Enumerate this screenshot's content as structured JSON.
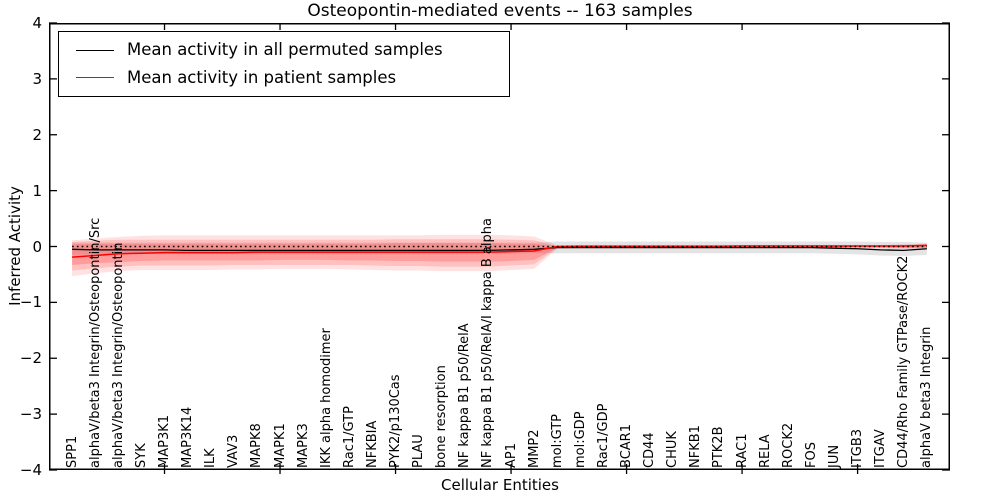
{
  "chart_data": {
    "type": "line",
    "title": "Osteopontin-mediated events -- 163 samples",
    "xlabel": "Cellular Entities",
    "ylabel": "Inferred Activity",
    "ylim": [
      -4,
      4
    ],
    "xlim": [
      0,
      39
    ],
    "yticks": [
      4,
      3,
      2,
      1,
      0,
      -1,
      -2,
      -3,
      -4
    ],
    "ytick_labels": [
      "4",
      "3",
      "2",
      "1",
      "0",
      "−1",
      "−2",
      "−3",
      "−4"
    ],
    "x_major_ticks": [
      5,
      10,
      15,
      20,
      25,
      30,
      35
    ],
    "grid": false,
    "legend_position": "upper-left",
    "legend": [
      {
        "label": "Mean activity in all permuted samples",
        "color": "#000000"
      },
      {
        "label": "Mean activity in patient samples",
        "color": "#ff0000"
      }
    ],
    "categories": [
      "SPP1",
      "alphaV/beta3 Integrin/Osteopontin/Src",
      "alphaV/beta3 Integrin/Osteopontin",
      "SYK",
      "MAP3K1",
      "MAP3K14",
      "ILK",
      "VAV3",
      "MAPK8",
      "MAPK1",
      "MAPK3",
      "IKK alpha homodimer",
      "Rac1/GTP",
      "NFKBIA",
      "PYK2/p130Cas",
      "PLAU",
      "bone resorption",
      "NF kappa B1 p50/RelA",
      "NF kappa B1 p50/RelA/I kappa B alpha",
      "AP1",
      "MMP2",
      "mol:GTP",
      "mol:GDP",
      "Rac1/GDP",
      "BCAR1",
      "CD44",
      "CHUK",
      "NFKB1",
      "PTK2B",
      "RAC1",
      "RELA",
      "ROCK2",
      "FOS",
      "JUN",
      "ITGB3",
      "ITGAV",
      "CD44/Rho Family GTPase/ROCK2",
      "alphaV beta3 Integrin"
    ],
    "series": [
      {
        "name": "Mean activity in all permuted samples",
        "color": "#000000",
        "style": "solid",
        "width": 1.3,
        "values": [
          -0.05,
          -0.06,
          -0.06,
          -0.06,
          -0.06,
          -0.07,
          -0.07,
          -0.07,
          -0.07,
          -0.07,
          -0.07,
          -0.07,
          -0.07,
          -0.07,
          -0.07,
          -0.07,
          -0.07,
          -0.07,
          -0.07,
          -0.06,
          -0.05,
          -0.02,
          -0.02,
          -0.02,
          -0.02,
          -0.02,
          -0.02,
          -0.02,
          -0.02,
          -0.02,
          -0.02,
          -0.02,
          -0.02,
          -0.03,
          -0.04,
          -0.06,
          -0.07,
          -0.04
        ]
      },
      {
        "name": "Mean activity in patient samples",
        "color": "#ff0000",
        "style": "solid",
        "width": 1.5,
        "values": [
          -0.19,
          -0.16,
          -0.13,
          -0.12,
          -0.11,
          -0.11,
          -0.11,
          -0.11,
          -0.1,
          -0.1,
          -0.1,
          -0.1,
          -0.1,
          -0.1,
          -0.1,
          -0.1,
          -0.1,
          -0.1,
          -0.1,
          -0.09,
          -0.08,
          0.0,
          0.005,
          0.005,
          0.005,
          0.005,
          0.005,
          0.005,
          0.005,
          0.01,
          0.01,
          0.01,
          0.01,
          0.01,
          0.01,
          0.01,
          0.01,
          0.02
        ]
      }
    ],
    "zero_line": {
      "y": 0,
      "style": "dotted",
      "color": "#000000"
    },
    "bands": [
      {
        "name": "permuted-envelope",
        "color": "rgba(130,130,130,0.22)",
        "top": [
          0.07,
          0.07,
          0.07,
          0.07,
          0.07,
          0.07,
          0.07,
          0.07,
          0.07,
          0.07,
          0.07,
          0.07,
          0.07,
          0.07,
          0.07,
          0.07,
          0.07,
          0.07,
          0.07,
          0.07,
          0.07,
          0.09,
          0.09,
          0.09,
          0.09,
          0.09,
          0.09,
          0.09,
          0.09,
          0.09,
          0.09,
          0.09,
          0.09,
          0.09,
          0.09,
          0.08,
          0.08,
          0.07
        ],
        "bottom": [
          -0.15,
          -0.14,
          -0.14,
          -0.13,
          -0.13,
          -0.13,
          -0.13,
          -0.13,
          -0.13,
          -0.13,
          -0.13,
          -0.13,
          -0.13,
          -0.13,
          -0.13,
          -0.13,
          -0.13,
          -0.13,
          -0.13,
          -0.13,
          -0.12,
          -0.12,
          -0.12,
          -0.12,
          -0.12,
          -0.12,
          -0.12,
          -0.12,
          -0.12,
          -0.12,
          -0.12,
          -0.12,
          -0.12,
          -0.13,
          -0.14,
          -0.16,
          -0.17,
          -0.15
        ]
      },
      {
        "name": "patient-outer",
        "color": "rgba(255,70,70,0.16)",
        "top": [
          0.11,
          0.14,
          0.17,
          0.19,
          0.2,
          0.2,
          0.2,
          0.2,
          0.2,
          0.2,
          0.2,
          0.2,
          0.2,
          0.2,
          0.2,
          0.2,
          0.21,
          0.21,
          0.21,
          0.2,
          0.18,
          0.02,
          0.03,
          0.03,
          0.03,
          0.03,
          0.03,
          0.03,
          0.03,
          0.03,
          0.03,
          0.03,
          0.03,
          0.03,
          0.03,
          0.03,
          0.04,
          0.05
        ],
        "bottom": [
          -0.53,
          -0.48,
          -0.44,
          -0.42,
          -0.42,
          -0.42,
          -0.42,
          -0.41,
          -0.41,
          -0.4,
          -0.4,
          -0.4,
          -0.41,
          -0.42,
          -0.43,
          -0.43,
          -0.44,
          -0.44,
          -0.44,
          -0.42,
          -0.4,
          -0.04,
          -0.03,
          -0.03,
          -0.03,
          -0.03,
          -0.03,
          -0.03,
          -0.03,
          -0.03,
          -0.03,
          -0.03,
          -0.03,
          -0.03,
          -0.03,
          -0.03,
          -0.04,
          -0.04
        ]
      },
      {
        "name": "patient-mid",
        "color": "rgba(255,60,60,0.2)",
        "top": [
          0.08,
          0.1,
          0.12,
          0.12,
          0.12,
          0.12,
          0.12,
          0.12,
          0.12,
          0.12,
          0.12,
          0.12,
          0.12,
          0.12,
          0.13,
          0.13,
          0.13,
          0.13,
          0.13,
          0.12,
          0.11,
          0.015,
          0.02,
          0.02,
          0.02,
          0.02,
          0.02,
          0.02,
          0.02,
          0.02,
          0.02,
          0.02,
          0.02,
          0.02,
          0.02,
          0.02,
          0.03,
          0.04
        ],
        "bottom": [
          -0.43,
          -0.39,
          -0.36,
          -0.34,
          -0.34,
          -0.34,
          -0.34,
          -0.33,
          -0.33,
          -0.33,
          -0.33,
          -0.33,
          -0.33,
          -0.34,
          -0.35,
          -0.35,
          -0.36,
          -0.36,
          -0.36,
          -0.34,
          -0.32,
          -0.03,
          -0.02,
          -0.02,
          -0.02,
          -0.02,
          -0.02,
          -0.02,
          -0.02,
          -0.02,
          -0.02,
          -0.02,
          -0.02,
          -0.02,
          -0.02,
          -0.02,
          -0.03,
          -0.03
        ]
      },
      {
        "name": "patient-inner",
        "color": "rgba(255,50,50,0.25)",
        "top": [
          0.04,
          0.05,
          0.05,
          0.05,
          0.05,
          0.05,
          0.05,
          0.05,
          0.05,
          0.05,
          0.05,
          0.05,
          0.05,
          0.05,
          0.06,
          0.06,
          0.06,
          0.06,
          0.06,
          0.05,
          0.05,
          0.01,
          0.015,
          0.015,
          0.015,
          0.015,
          0.015,
          0.015,
          0.015,
          0.015,
          0.015,
          0.015,
          0.015,
          0.015,
          0.015,
          0.015,
          0.02,
          0.03
        ],
        "bottom": [
          -0.33,
          -0.3,
          -0.28,
          -0.26,
          -0.25,
          -0.25,
          -0.25,
          -0.25,
          -0.25,
          -0.24,
          -0.24,
          -0.24,
          -0.25,
          -0.25,
          -0.26,
          -0.26,
          -0.27,
          -0.27,
          -0.27,
          -0.26,
          -0.24,
          -0.02,
          -0.01,
          -0.01,
          -0.01,
          -0.01,
          -0.01,
          -0.01,
          -0.01,
          -0.01,
          -0.01,
          -0.01,
          -0.01,
          -0.01,
          -0.01,
          -0.01,
          -0.02,
          -0.02
        ]
      }
    ]
  }
}
